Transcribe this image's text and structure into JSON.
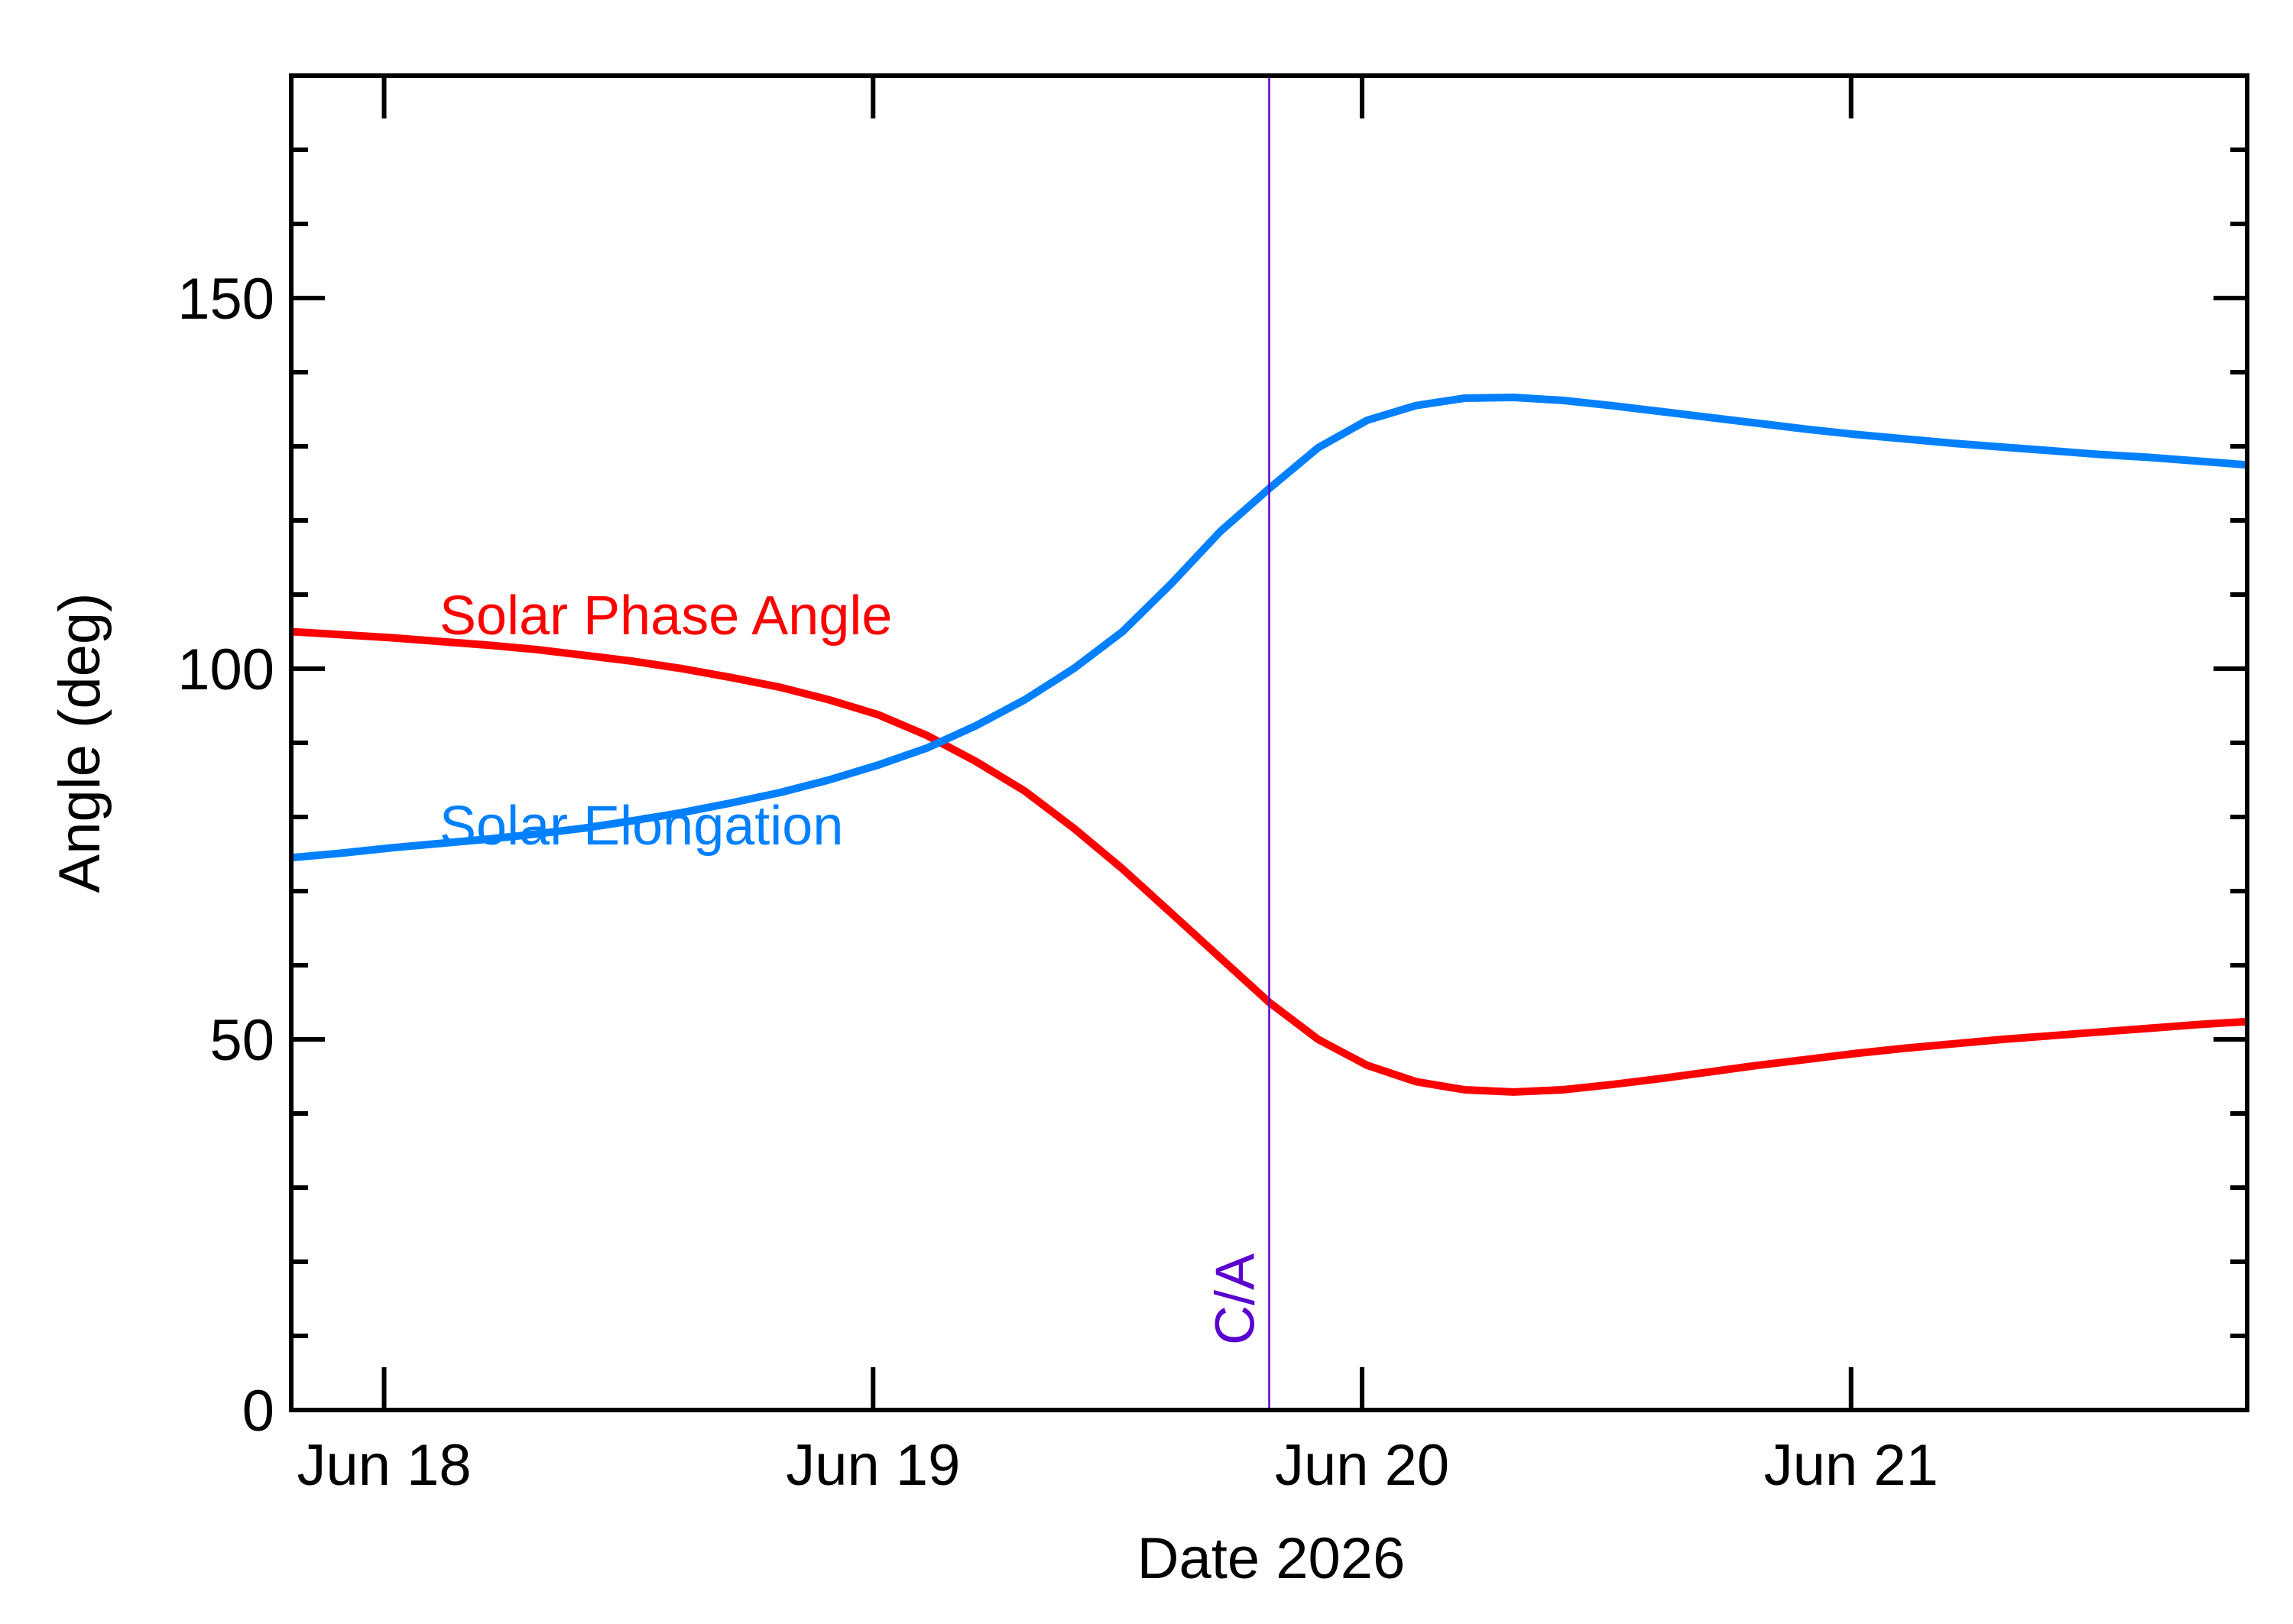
{
  "chart_data": {
    "type": "line",
    "x_label": "Date 2026",
    "y_label": "Angle (deg)",
    "x": [
      17.81,
      17.91,
      18.01,
      18.11,
      18.21,
      18.31,
      18.41,
      18.51,
      18.61,
      18.71,
      18.81,
      18.91,
      19.01,
      19.11,
      19.21,
      19.31,
      19.41,
      19.51,
      19.61,
      19.71,
      19.81,
      19.91,
      20.01,
      20.11,
      20.21,
      20.31,
      20.41,
      20.51,
      20.61,
      20.71,
      20.81,
      20.91,
      21.01,
      21.11,
      21.21,
      21.31,
      21.41,
      21.51,
      21.61,
      21.71,
      21.81
    ],
    "series": [
      {
        "name": "Solar Phase Angle",
        "color": "#ff0000",
        "values": [
          105.0,
          104.6,
          104.2,
          103.7,
          103.2,
          102.6,
          101.8,
          101.0,
          100.0,
          98.8,
          97.5,
          95.8,
          93.8,
          91.0,
          87.5,
          83.5,
          78.5,
          73.0,
          67.0,
          61.0,
          55.0,
          50.0,
          46.5,
          44.3,
          43.2,
          42.9,
          43.2,
          43.9,
          44.7,
          45.6,
          46.5,
          47.3,
          48.1,
          48.8,
          49.4,
          50.0,
          50.5,
          51.0,
          51.5,
          52.0,
          52.4
        ]
      },
      {
        "name": "Solar Elongation",
        "color": "#0080ff",
        "values": [
          74.5,
          75.1,
          75.8,
          76.4,
          77.0,
          77.7,
          78.5,
          79.5,
          80.6,
          81.9,
          83.3,
          85.0,
          87.0,
          89.3,
          92.3,
          95.8,
          100.0,
          105.0,
          111.5,
          118.5,
          124.3,
          129.8,
          133.5,
          135.5,
          136.5,
          136.6,
          136.2,
          135.5,
          134.7,
          133.9,
          133.1,
          132.3,
          131.6,
          131.0,
          130.4,
          129.9,
          129.4,
          128.9,
          128.5,
          128.0,
          127.5
        ]
      }
    ],
    "annotation": {
      "text": "C/A",
      "x": 19.81,
      "color": "#5a00d0"
    },
    "xlim": [
      17.81,
      21.81
    ],
    "xticks": [
      {
        "value": 18,
        "label": "Jun 18"
      },
      {
        "value": 19,
        "label": "Jun 19"
      },
      {
        "value": 20,
        "label": "Jun 20"
      },
      {
        "value": 21,
        "label": "Jun 21"
      }
    ],
    "ylim": [
      0,
      180
    ],
    "yticks": [
      0,
      50,
      100,
      150
    ],
    "yminorticks": [
      10,
      20,
      30,
      40,
      60,
      70,
      80,
      90,
      110,
      120,
      130,
      140,
      160,
      170
    ]
  }
}
